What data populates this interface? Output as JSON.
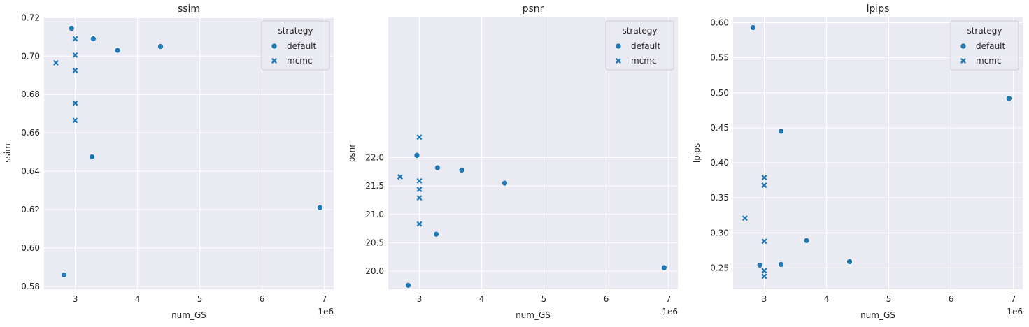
{
  "colors": {
    "series": "#1f77b4",
    "background": "#eaeaf2",
    "grid": "#ffffff"
  },
  "chart_data": [
    {
      "type": "scatter",
      "title": "ssim",
      "xlabel": "num_GS",
      "ylabel": "ssim",
      "x_offset_label": "1e6",
      "xlim": [
        2.5,
        7.15
      ],
      "ylim": [
        0.5785,
        0.7205
      ],
      "xticks": [
        3,
        4,
        5,
        6,
        7
      ],
      "xtick_labels": [
        "3",
        "4",
        "5",
        "6",
        "7"
      ],
      "yticks": [
        0.58,
        0.6,
        0.62,
        0.64,
        0.66,
        0.68,
        0.7,
        0.72
      ],
      "ytick_labels": [
        "0.58",
        "0.60",
        "0.62",
        "0.64",
        "0.66",
        "0.68",
        "0.70",
        "0.72"
      ],
      "grid": true,
      "legend": {
        "title": "strategy",
        "position": "top-right",
        "entries": [
          {
            "label": "default",
            "marker": "circle"
          },
          {
            "label": "mcmc",
            "marker": "x"
          }
        ]
      },
      "series": [
        {
          "name": "default",
          "marker": "circle",
          "x": [
            2.94,
            3.29,
            3.68,
            4.37,
            3.27,
            6.93,
            2.82
          ],
          "y": [
            0.7145,
            0.709,
            0.703,
            0.705,
            0.6475,
            0.621,
            0.586
          ]
        },
        {
          "name": "mcmc",
          "marker": "x",
          "x": [
            3.0,
            3.0,
            3.0,
            2.69,
            3.0,
            3.0
          ],
          "y": [
            0.709,
            0.7005,
            0.6925,
            0.6965,
            0.6755,
            0.6665
          ]
        }
      ]
    },
    {
      "type": "scatter",
      "title": "psnr",
      "xlabel": "num_GS",
      "ylabel": "psnr",
      "x_offset_label": "1e6",
      "xlim": [
        2.5,
        7.15
      ],
      "ylim": [
        19.68,
        24.48
      ],
      "xticks": [
        3,
        4,
        5,
        6,
        7
      ],
      "xtick_labels": [
        "3",
        "4",
        "5",
        "6",
        "7"
      ],
      "yticks": [
        20.0,
        20.5,
        21.0,
        21.5,
        22.0
      ],
      "ytick_labels": [
        "20.0",
        "20.5",
        "21.0",
        "21.5",
        "22.0"
      ],
      "grid": true,
      "legend": {
        "title": "strategy",
        "position": "top-right",
        "entries": [
          {
            "label": "default",
            "marker": "circle"
          },
          {
            "label": "mcmc",
            "marker": "x"
          }
        ]
      },
      "series": [
        {
          "name": "default",
          "marker": "circle",
          "x": [
            2.96,
            3.29,
            3.68,
            4.37,
            3.27,
            6.93,
            2.82
          ],
          "y": [
            22.04,
            21.82,
            21.78,
            21.55,
            20.65,
            20.06,
            19.75
          ]
        },
        {
          "name": "mcmc",
          "marker": "x",
          "x": [
            3.0,
            2.69,
            3.0,
            3.0,
            3.0,
            3.0
          ],
          "y": [
            22.36,
            21.66,
            21.59,
            21.44,
            21.29,
            20.83
          ]
        }
      ]
    },
    {
      "type": "scatter",
      "title": "lpips",
      "xlabel": "num_GS",
      "ylabel": "lpips",
      "x_offset_label": "1e6",
      "xlim": [
        2.5,
        7.15
      ],
      "ylim": [
        0.2195,
        0.6085
      ],
      "xticks": [
        3,
        4,
        5,
        6,
        7
      ],
      "xtick_labels": [
        "3",
        "4",
        "5",
        "6",
        "7"
      ],
      "yticks": [
        0.25,
        0.3,
        0.35,
        0.4,
        0.45,
        0.5,
        0.55,
        0.6
      ],
      "ytick_labels": [
        "0.25",
        "0.30",
        "0.35",
        "0.40",
        "0.45",
        "0.50",
        "0.55",
        "0.60"
      ],
      "grid": true,
      "legend": {
        "title": "strategy",
        "position": "top-right",
        "entries": [
          {
            "label": "default",
            "marker": "circle"
          },
          {
            "label": "mcmc",
            "marker": "x"
          }
        ]
      },
      "series": [
        {
          "name": "default",
          "marker": "circle",
          "x": [
            2.82,
            6.93,
            3.27,
            3.68,
            3.27,
            2.93,
            4.37
          ],
          "y": [
            0.593,
            0.492,
            0.445,
            0.289,
            0.255,
            0.254,
            0.259
          ]
        },
        {
          "name": "mcmc",
          "marker": "x",
          "x": [
            3.0,
            3.0,
            2.69,
            3.0,
            3.0,
            3.0
          ],
          "y": [
            0.379,
            0.368,
            0.321,
            0.288,
            0.246,
            0.238
          ]
        }
      ]
    }
  ]
}
